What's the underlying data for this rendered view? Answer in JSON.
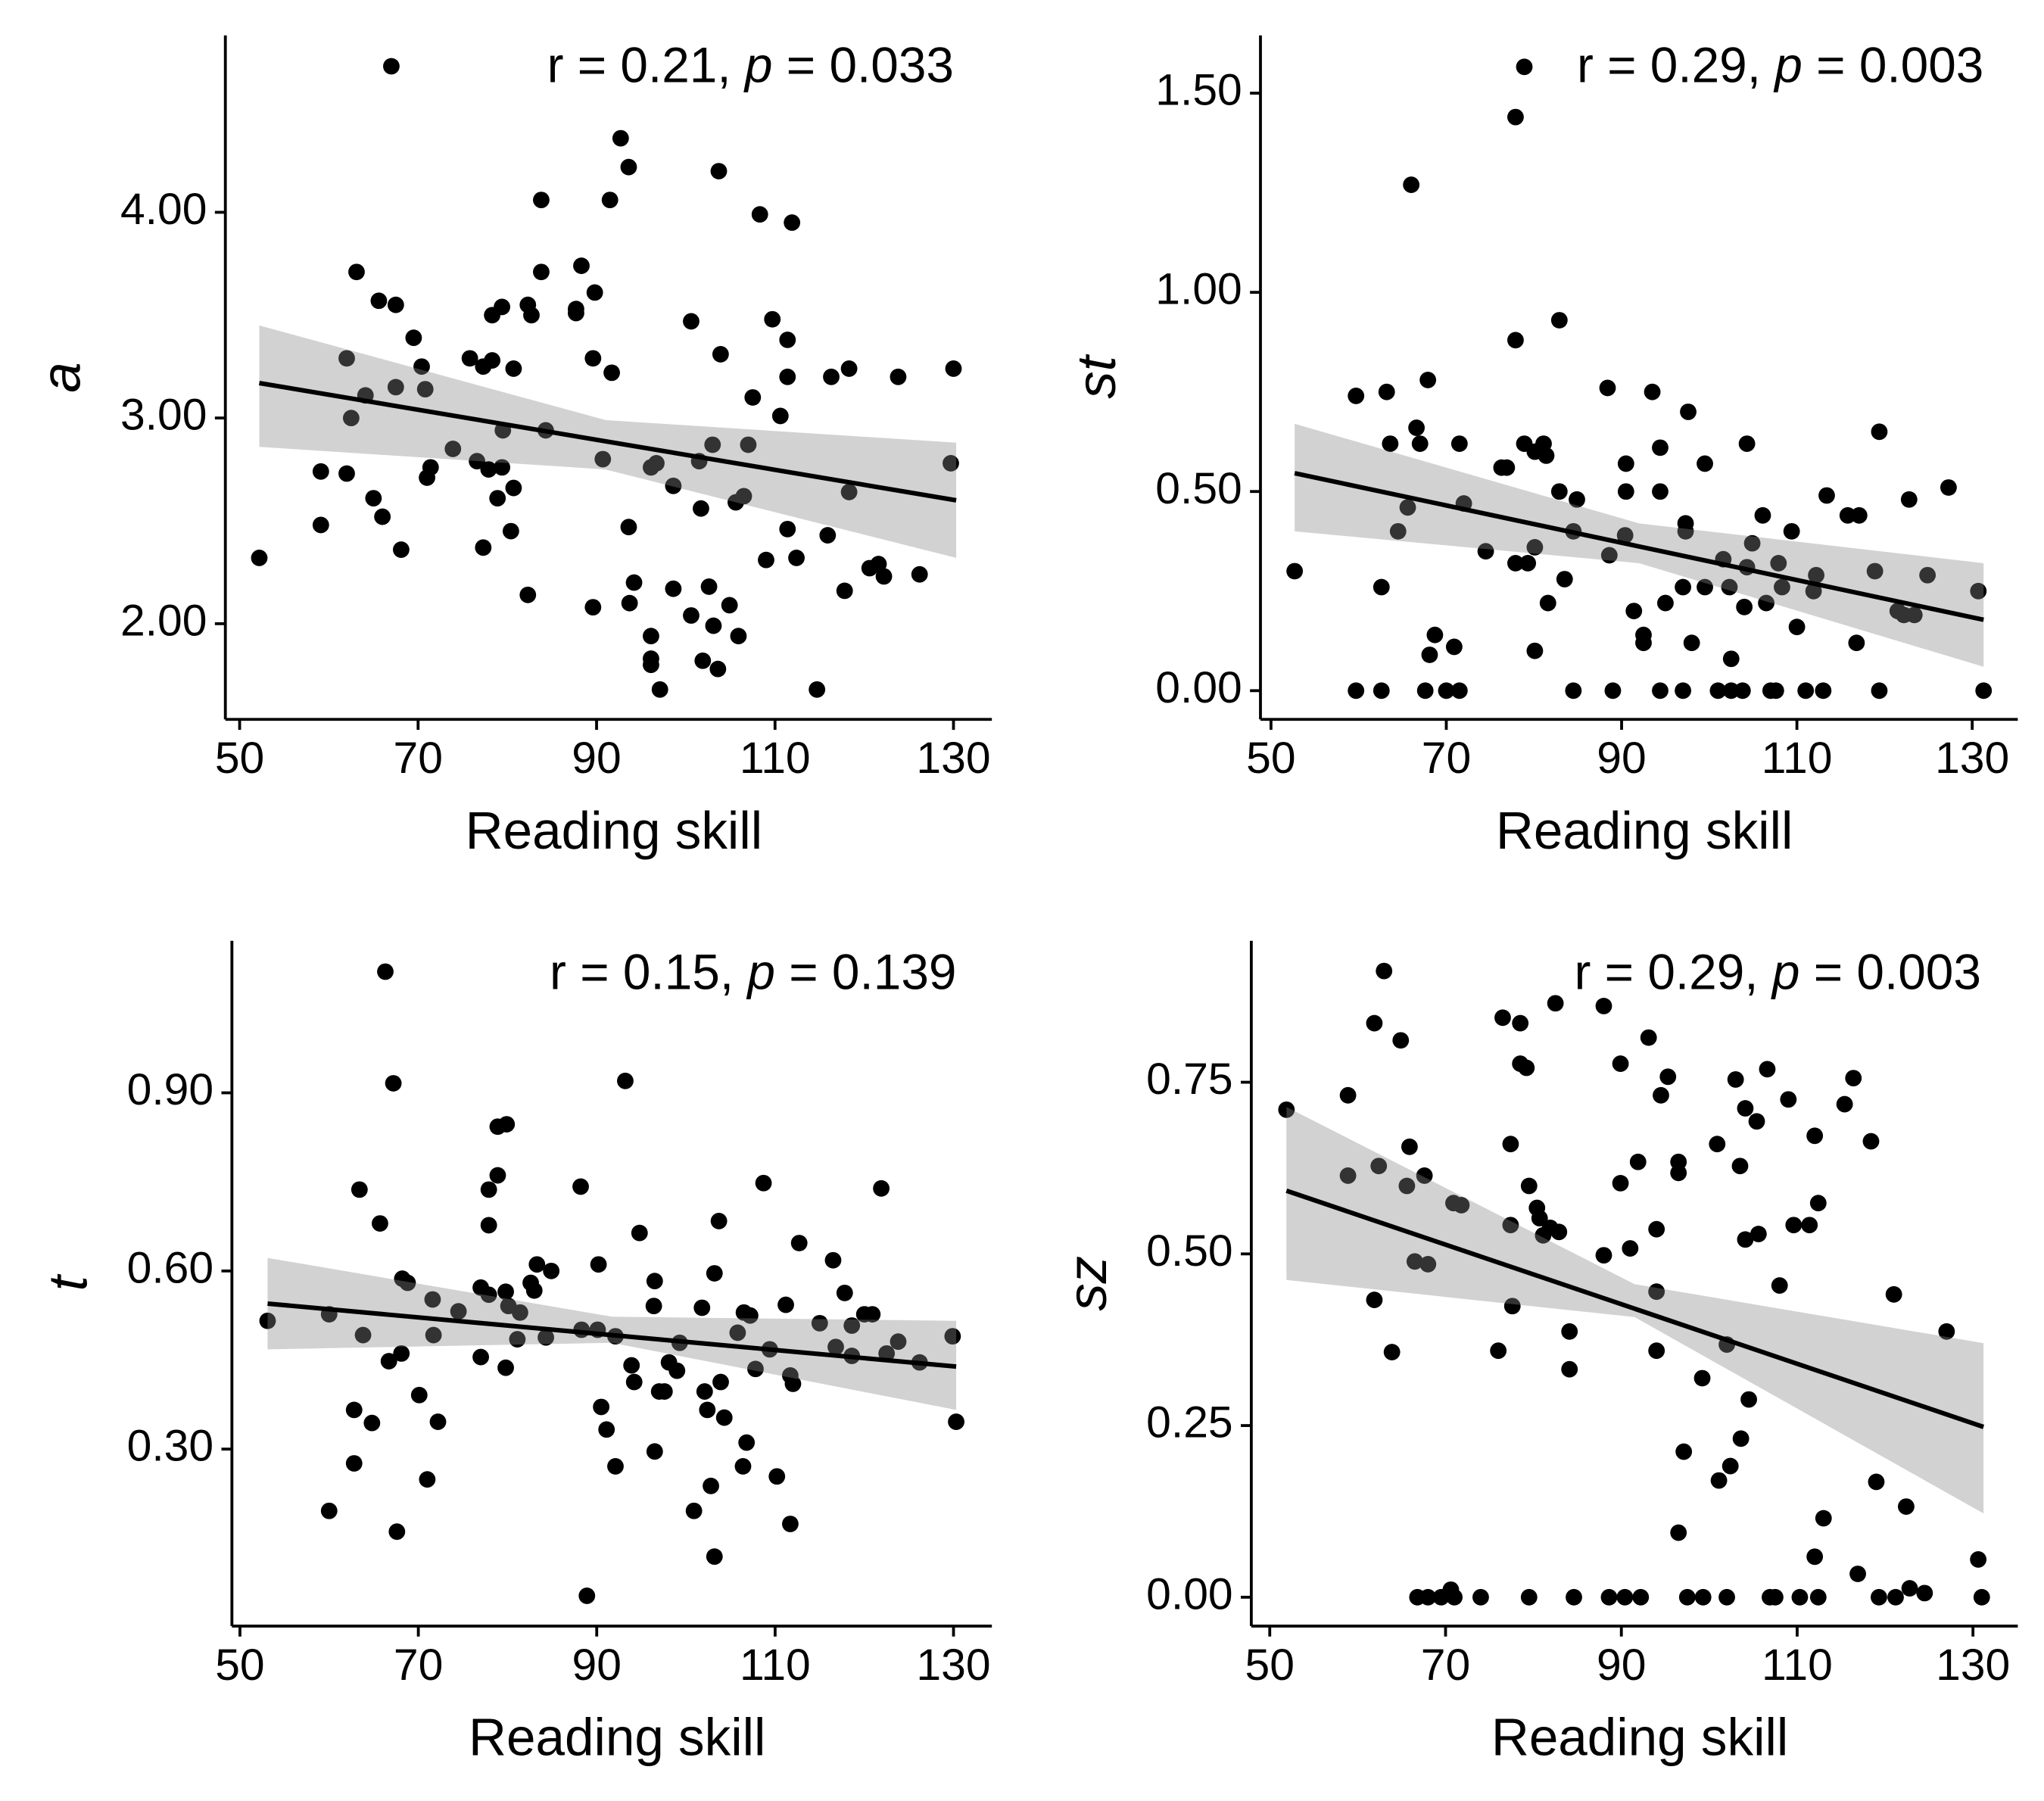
{
  "chart_data": [
    {
      "type": "scatter",
      "x_label": "Reading skill",
      "y_label": "a",
      "annotation": {
        "r_label": "r = 0.21,",
        "p_symbol": "p",
        "p_label": "= 0.033"
      },
      "xlim": [
        48.4,
        134.3
      ],
      "xticks": [
        50,
        70,
        90,
        110,
        130
      ],
      "ylim": [
        1.535,
        4.86
      ],
      "yticks": [
        {
          "value": 2,
          "label": "2.00"
        },
        {
          "value": 3,
          "label": "3.00"
        },
        {
          "value": 4,
          "label": "4.00"
        }
      ],
      "point_color": "#000000",
      "line_color": "#000000",
      "band_color": "#888888",
      "x": [
        67.0,
        52.2,
        59.1,
        59.1,
        62.0,
        62.0,
        62.5,
        63.1,
        64.1,
        65.0,
        65.6,
        66.0,
        67.5,
        67.5,
        68.1,
        69.5,
        70.4,
        70.8,
        71.0,
        71.4,
        73.9,
        75.8,
        76.6,
        77.3,
        77.3,
        77.9,
        78.3,
        78.3,
        78.9,
        79.4,
        79.4,
        79.5,
        80.7,
        80.7,
        80.4,
        82.3,
        82.3,
        82.7,
        83.8,
        83.8,
        84.3,
        87.7,
        87.7,
        88.3,
        89.6,
        89.6,
        89.8,
        90.7,
        91.5,
        91.7,
        92.7,
        93.6,
        93.6,
        93.7,
        94.2,
        96.1,
        96.1,
        96.1,
        96.1,
        96.7,
        97.1,
        98.6,
        98.6,
        100.6,
        100.6,
        101.5,
        101.7,
        101.9,
        102.6,
        103.0,
        103.1,
        103.6,
        103.7,
        103.9,
        104.9,
        105.6,
        105.9,
        106.5,
        107.0,
        107.5,
        108.3,
        109.0,
        109.7,
        110.6,
        111.4,
        111.4,
        111.4,
        111.9,
        112.4,
        114.7,
        115.9,
        116.3,
        117.8,
        118.3,
        118.3,
        120.6,
        121.6,
        122.2,
        123.8,
        126.2,
        130.0,
        129.7
      ],
      "values": [
        4.71,
        2.32,
        2.74,
        2.48,
        3.29,
        2.73,
        3.0,
        3.71,
        3.11,
        2.61,
        3.57,
        2.52,
        3.15,
        3.55,
        2.36,
        3.39,
        3.25,
        3.14,
        2.71,
        2.76,
        2.85,
        3.29,
        2.79,
        3.25,
        2.37,
        2.75,
        3.28,
        3.5,
        2.61,
        3.54,
        2.76,
        2.94,
        3.24,
        2.66,
        2.45,
        2.14,
        3.55,
        3.5,
        4.06,
        3.71,
        2.94,
        3.51,
        3.53,
        3.74,
        2.08,
        3.29,
        3.61,
        2.8,
        4.06,
        3.22,
        4.36,
        4.22,
        2.47,
        2.1,
        2.2,
        1.94,
        1.83,
        1.8,
        2.76,
        2.78,
        1.68,
        2.67,
        2.17,
        3.47,
        2.04,
        2.79,
        2.56,
        1.82,
        2.18,
        2.87,
        1.99,
        1.78,
        4.2,
        3.31,
        2.09,
        2.59,
        1.94,
        2.62,
        2.87,
        3.1,
        3.99,
        2.31,
        3.48,
        3.01,
        3.38,
        3.2,
        2.46,
        3.95,
        2.32,
        1.68,
        2.43,
        3.2,
        2.16,
        2.64,
        3.24,
        2.27,
        2.29,
        2.23,
        3.2,
        2.24,
        3.24,
        2.78
      ],
      "fit": {
        "x": [
          52.2,
          130.3
        ],
        "values": [
          3.17,
          2.6
        ]
      },
      "band": {
        "x": [
          52.2,
          91.0,
          130.3
        ],
        "upper": [
          3.45,
          2.99,
          2.88
        ],
        "lower": [
          2.86,
          2.75,
          2.32
        ]
      }
    },
    {
      "type": "scatter",
      "x_label": "Reading skill",
      "y_label": "st",
      "annotation": {
        "r_label": "r = 0.29,",
        "p_symbol": "p",
        "p_label": "= 0.003"
      },
      "xlim": [
        48.8,
        135.2
      ],
      "xticks": [
        50,
        70,
        90,
        110,
        130
      ],
      "ylim": [
        -0.072,
        1.645
      ],
      "yticks": [
        {
          "value": 0,
          "label": "0.00"
        },
        {
          "value": 0.5,
          "label": "0.50"
        },
        {
          "value": 1,
          "label": "1.00"
        },
        {
          "value": 1.5,
          "label": "1.50"
        }
      ],
      "point_color": "#000000",
      "line_color": "#000000",
      "band_color": "#888888",
      "x": [
        78.9,
        52.7,
        59.7,
        59.7,
        62.6,
        62.6,
        63.2,
        63.6,
        64.5,
        65.6,
        66.0,
        66.6,
        67.0,
        67.6,
        67.9,
        68.1,
        68.7,
        70.0,
        70.9,
        71.5,
        71.5,
        72.0,
        74.5,
        76.3,
        76.9,
        77.9,
        77.9,
        77.9,
        78.9,
        79.3,
        80.1,
        80.1,
        80.1,
        81.1,
        81.4,
        81.6,
        82.9,
        82.9,
        83.5,
        84.5,
        84.9,
        84.5,
        88.4,
        88.6,
        89.0,
        90.5,
        90.5,
        90.4,
        91.4,
        92.5,
        92.5,
        93.5,
        94.4,
        94.4,
        94.4,
        95.0,
        97.0,
        97.0,
        97.3,
        97.3,
        97.6,
        98.0,
        99.5,
        99.5,
        101.0,
        101.6,
        102.3,
        102.5,
        102.5,
        103.8,
        104.0,
        104.3,
        104.3,
        104.9,
        106.1,
        106.5,
        107.0,
        107.6,
        107.9,
        108.3,
        109.4,
        110.0,
        111.0,
        111.9,
        112.2,
        113.0,
        113.4,
        115.8,
        116.8,
        117.1,
        118.9,
        119.4,
        119.4,
        121.5,
        122.2,
        122.8,
        123.4,
        124.9,
        127.3,
        130.7,
        131.3
      ],
      "values": [
        1.566,
        0.3,
        0.74,
        0,
        0.26,
        0,
        0.75,
        0.62,
        0.4,
        0.46,
        1.27,
        0.66,
        0.62,
        0,
        0.78,
        0.09,
        0.14,
        0,
        0.11,
        0.62,
        0,
        0.47,
        0.35,
        0.56,
        0.56,
        1.44,
        0.88,
        0.32,
        0.62,
        0.32,
        0.6,
        0.36,
        0.1,
        0.62,
        0.59,
        0.22,
        0.93,
        0.5,
        0.28,
        0,
        0.48,
        0.4,
        0.76,
        0.34,
        0,
        0.57,
        0.5,
        0.39,
        0.2,
        0.14,
        0.12,
        0.75,
        0.61,
        0.5,
        0,
        0.22,
        0.26,
        0,
        0.42,
        0.4,
        0.7,
        0.12,
        0.57,
        0.26,
        0,
        0.33,
        0.26,
        0.08,
        0,
        0,
        0.21,
        0.62,
        0.31,
        0.37,
        0.44,
        0.22,
        0,
        0,
        0.32,
        0.26,
        0.4,
        0.16,
        0,
        0.25,
        0.29,
        0,
        0.49,
        0.44,
        0.12,
        0.44,
        0.3,
        0.65,
        0,
        0.2,
        0.19,
        0.48,
        0.19,
        0.29,
        0.51,
        0.25,
        0
      ],
      "fit": {
        "x": [
          52.7,
          131.3
        ],
        "values": [
          0.546,
          0.178
        ]
      },
      "band": {
        "x": [
          52.7,
          92.0,
          131.3
        ],
        "upper": [
          0.67,
          0.42,
          0.32
        ],
        "lower": [
          0.4,
          0.32,
          0.06
        ]
      }
    },
    {
      "type": "scatter",
      "x_label": "Reading skill",
      "y_label": "t",
      "annotation": {
        "r_label": "r = 0.15,",
        "p_symbol": "p",
        "p_label": "= 0.139"
      },
      "xlim": [
        49.1,
        134.3
      ],
      "xticks": [
        50,
        70,
        90,
        110,
        130
      ],
      "ylim": [
        0.002,
        1.156
      ],
      "yticks": [
        {
          "value": 0.3,
          "label": "0.30"
        },
        {
          "value": 0.6,
          "label": "0.60"
        },
        {
          "value": 0.9,
          "label": "0.90"
        }
      ],
      "point_color": "#000000",
      "line_color": "#000000",
      "band_color": "#888888",
      "x": [
        66.3,
        53.1,
        60.0,
        60.0,
        62.8,
        62.8,
        63.4,
        63.8,
        64.8,
        65.7,
        66.7,
        67.2,
        67.6,
        68.2,
        68.8,
        68.1,
        70.1,
        71.0,
        71.6,
        71.7,
        72.2,
        74.5,
        77.0,
        77.0,
        77.9,
        77.9,
        77.9,
        78.9,
        78.9,
        79.9,
        79.8,
        79.8,
        80.1,
        81.1,
        81.4,
        82.6,
        83.0,
        83.3,
        84.3,
        84.9,
        88.2,
        88.3,
        88.9,
        90.1,
        90.2,
        90.5,
        91.1,
        92.1,
        92.1,
        93.2,
        93.9,
        94.2,
        94.8,
        96.4,
        96.5,
        96.5,
        97.0,
        97.6,
        98.1,
        99.0,
        99.3,
        100.9,
        101.8,
        102.1,
        102.4,
        102.8,
        103.2,
        103.2,
        103.7,
        103.9,
        104.3,
        105.8,
        106.4,
        106.5,
        106.8,
        107.2,
        107.8,
        108.7,
        109.4,
        110.2,
        111.2,
        111.7,
        111.7,
        112.0,
        112.7,
        115.0,
        116.5,
        116.8,
        117.8,
        118.6,
        118.6,
        120.0,
        120.9,
        121.9,
        122.5,
        123.8,
        126.2,
        129.9,
        130.3
      ],
      "values": [
        1.104,
        0.516,
        0.196,
        0.527,
        0.366,
        0.276,
        0.737,
        0.492,
        0.344,
        0.68,
        0.448,
        0.916,
        0.161,
        0.587,
        0.58,
        0.461,
        0.391,
        0.249,
        0.552,
        0.492,
        0.346,
        0.532,
        0.455,
        0.572,
        0.737,
        0.677,
        0.56,
        0.761,
        0.843,
        0.847,
        0.565,
        0.437,
        0.541,
        0.485,
        0.53,
        0.58,
        0.567,
        0.611,
        0.488,
        0.6,
        0.742,
        0.501,
        0.053,
        0.501,
        0.611,
        0.371,
        0.333,
        0.49,
        0.271,
        0.92,
        0.441,
        0.413,
        0.664,
        0.541,
        0.583,
        0.296,
        0.397,
        0.397,
        0.446,
        0.432,
        0.479,
        0.196,
        0.538,
        0.397,
        0.366,
        0.238,
        0.596,
        0.119,
        0.684,
        0.413,
        0.353,
        0.496,
        0.271,
        0.53,
        0.311,
        0.525,
        0.435,
        0.748,
        0.468,
        0.254,
        0.543,
        0.174,
        0.424,
        0.41,
        0.647,
        0.512,
        0.618,
        0.472,
        0.563,
        0.457,
        0.508,
        0.527,
        0.527,
        0.739,
        0.461,
        0.481,
        0.446,
        0.49,
        0.346
      ],
      "fit": {
        "x": [
          53.1,
          130.3
        ],
        "values": [
          0.545,
          0.439
        ]
      },
      "band": {
        "x": [
          53.1,
          91.7,
          130.3
        ],
        "upper": [
          0.622,
          0.523,
          0.516
        ],
        "lower": [
          0.468,
          0.479,
          0.366
        ]
      }
    },
    {
      "type": "scatter",
      "x_label": "Reading skill",
      "y_label": "sz",
      "annotation": {
        "r_label": "r = 0.29,",
        "p_symbol": "p",
        "p_label": "= 0.003"
      },
      "xlim": [
        47.9,
        135.1
      ],
      "xticks": [
        50,
        70,
        90,
        110,
        130
      ],
      "ylim": [
        -0.042,
        0.956
      ],
      "yticks": [
        {
          "value": 0,
          "label": "0.00"
        },
        0.25,
        {
          "value": 0.5,
          "label": "0.50"
        },
        0.75
      ],
      "point_color": "#000000",
      "line_color": "#000000",
      "band_color": "#888888",
      "x": [
        63.0,
        51.9,
        58.9,
        58.9,
        61.9,
        61.9,
        62.4,
        63.9,
        64.9,
        65.6,
        65.9,
        66.5,
        66.8,
        67.6,
        68.0,
        68.0,
        69.5,
        70.6,
        71.0,
        70.9,
        71.8,
        74.0,
        76.0,
        76.5,
        77.4,
        77.4,
        77.6,
        78.5,
        78.5,
        79.2,
        79.5,
        79.5,
        80.4,
        80.7,
        81.1,
        81.9,
        82.5,
        82.9,
        84.1,
        84.1,
        84.6,
        88.0,
        88.0,
        88.6,
        89.9,
        89.9,
        90.4,
        91.0,
        91.9,
        92.2,
        93.1,
        94.0,
        94.0,
        94.0,
        94.5,
        95.3,
        96.5,
        96.5,
        96.5,
        97.1,
        97.5,
        99.2,
        99.3,
        100.9,
        101.1,
        102.0,
        102.0,
        102.4,
        103.0,
        103.5,
        103.6,
        104.1,
        104.1,
        104.5,
        105.4,
        105.6,
        106.6,
        106.9,
        107.5,
        108.0,
        109.0,
        109.6,
        110.3,
        111.4,
        112.0,
        112.0,
        112.4,
        112.4,
        113.0,
        115.4,
        116.4,
        116.9,
        118.4,
        119.0,
        119.3,
        121.0,
        121.2,
        122.4,
        122.8,
        124.5,
        127.0,
        130.6,
        131.0
      ],
      "values": [
        0.912,
        0.71,
        0.731,
        0.614,
        0.836,
        0.433,
        0.628,
        0.357,
        0.811,
        0.599,
        0.656,
        0.489,
        0,
        0.614,
        0.485,
        0,
        0,
        0.011,
        0,
        0.574,
        0.571,
        0,
        0.359,
        0.844,
        0.66,
        0.542,
        0.424,
        0.836,
        0.777,
        0.771,
        0.599,
        0,
        0.567,
        0.552,
        0.527,
        0.538,
        0.865,
        0.532,
        0.387,
        0.332,
        0,
        0.861,
        0.498,
        0,
        0.777,
        0.603,
        0,
        0.508,
        0.634,
        0,
        0.815,
        0.536,
        0.445,
        0.359,
        0.731,
        0.758,
        0.634,
        0.618,
        0.094,
        0.212,
        0,
        0.319,
        0,
        0.66,
        0.17,
        0,
        0.368,
        0.191,
        0.754,
        0.628,
        0.231,
        0.712,
        0.521,
        0.288,
        0.693,
        0.529,
        0.769,
        0,
        0,
        0.454,
        0.725,
        0.542,
        0,
        0.542,
        0.672,
        0.059,
        0.574,
        0,
        0.115,
        0.718,
        0.756,
        0.034,
        0.664,
        0.168,
        0,
        0.441,
        0,
        0.132,
        0.013,
        0.006,
        0.387,
        0.055,
        0
      ],
      "fit": {
        "x": [
          51.9,
          131.2
        ],
        "values": [
          0.592,
          0.248
        ]
      },
      "band": {
        "x": [
          51.9,
          91.5,
          131.2
        ],
        "upper": [
          0.714,
          0.456,
          0.37
        ],
        "lower": [
          0.462,
          0.408,
          0.122
        ]
      }
    }
  ]
}
